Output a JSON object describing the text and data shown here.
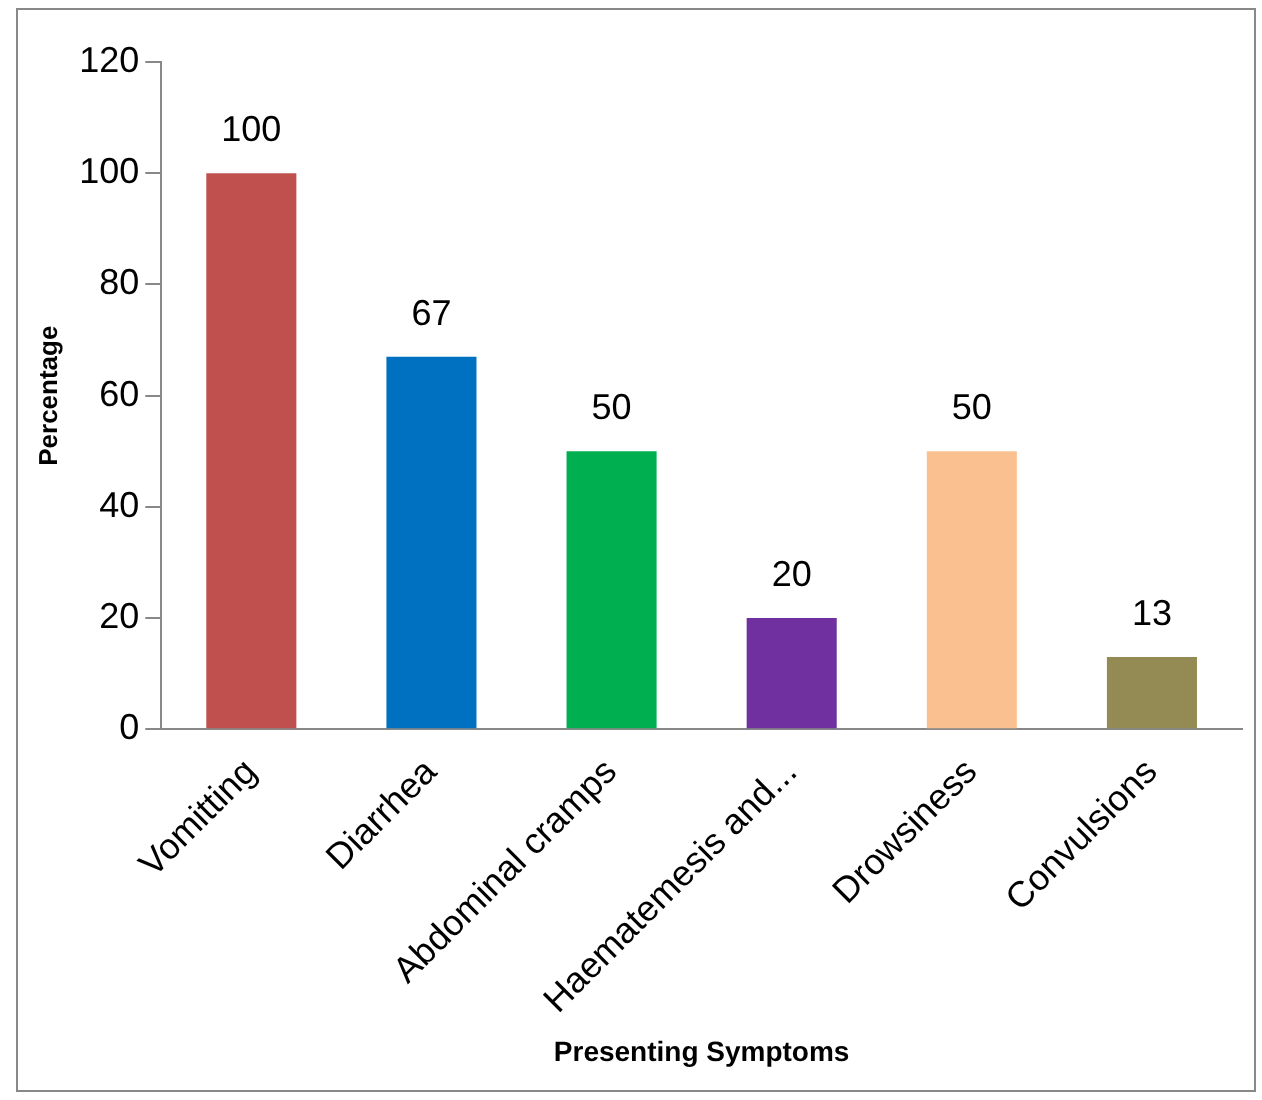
{
  "chart_data": {
    "type": "bar",
    "xlabel": "Presenting Symptoms",
    "ylabel": "Percentage",
    "categories": [
      "Vomitting",
      "Diarrhea",
      "Abdominal cramps",
      "Haematemesis and...",
      "Drowsiness",
      "Convulsions"
    ],
    "values": [
      100,
      67,
      50,
      20,
      50,
      13
    ],
    "colors": [
      "#c0504d",
      "#0070c0",
      "#00b050",
      "#7030a0",
      "#fac090",
      "#948a54"
    ],
    "ylim": [
      0,
      120
    ],
    "yticks": [
      0,
      20,
      40,
      60,
      80,
      100,
      120
    ],
    "grid": false,
    "legend": false,
    "data_labels": true
  }
}
